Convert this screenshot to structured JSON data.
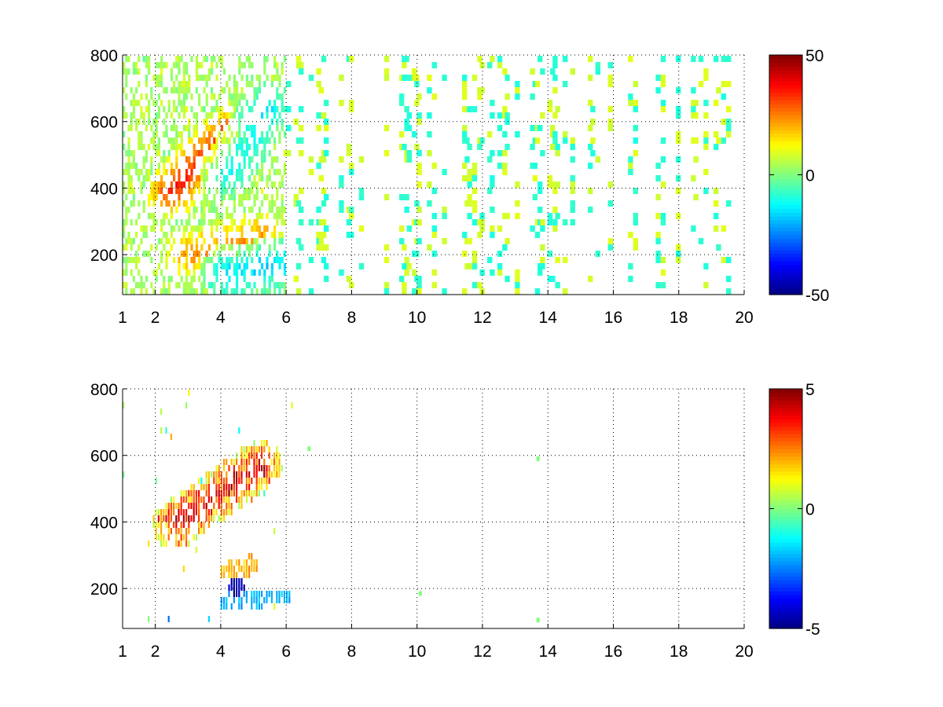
{
  "chart_data": [
    {
      "type": "heatmap",
      "title": "",
      "xlabel": "",
      "ylabel": "",
      "xlim": [
        1,
        20
      ],
      "ylim": [
        80,
        800
      ],
      "x_ticks": [
        1,
        2,
        4,
        6,
        8,
        10,
        12,
        14,
        16,
        18,
        20
      ],
      "y_ticks": [
        200,
        400,
        600,
        800
      ],
      "grid": true,
      "colormap": "jet",
      "colorbar": {
        "range": [
          -50,
          50
        ],
        "ticks": [
          -50,
          0,
          50
        ]
      },
      "features": [
        {
          "name": "dense-band",
          "x_range": [
            1,
            6
          ],
          "y_range": [
            80,
            800
          ],
          "value_range": [
            -20,
            20
          ]
        },
        {
          "name": "upper-warm-ridge",
          "from": [
            2.5,
            390
          ],
          "to": [
            4.2,
            560
          ],
          "value": 35
        },
        {
          "name": "upper-cool-ridge",
          "from": [
            4.2,
            450
          ],
          "to": [
            5.5,
            650
          ],
          "value": -15
        },
        {
          "name": "lower-warm-ridge",
          "from": [
            3.0,
            200
          ],
          "to": [
            5.2,
            260
          ],
          "value": 22
        },
        {
          "name": "lower-cool-band",
          "from": [
            4.2,
            150
          ],
          "to": [
            5.9,
            170
          ],
          "value": -18
        },
        {
          "name": "sparse-noise",
          "x_range": [
            6,
            20
          ],
          "y_range": [
            80,
            800
          ],
          "value_range": [
            -10,
            10
          ]
        }
      ]
    },
    {
      "type": "heatmap",
      "title": "",
      "xlabel": "",
      "ylabel": "",
      "xlim": [
        1,
        20
      ],
      "ylim": [
        80,
        800
      ],
      "x_ticks": [
        1,
        2,
        4,
        6,
        8,
        10,
        12,
        14,
        16,
        18,
        20
      ],
      "y_ticks": [
        200,
        400,
        600,
        800
      ],
      "grid": true,
      "colormap": "jet",
      "colorbar": {
        "range": [
          -5,
          5
        ],
        "ticks": [
          -5,
          0,
          5
        ]
      },
      "features": [
        {
          "name": "upper-ridge",
          "from": [
            2.6,
            390
          ],
          "to": [
            5.2,
            570
          ],
          "value": 4
        },
        {
          "name": "lower-ridge",
          "from": [
            4.3,
            250
          ],
          "to": [
            4.9,
            270
          ],
          "value": 2
        },
        {
          "name": "negative-core",
          "at": [
            4.5,
            205
          ],
          "value": -5
        },
        {
          "name": "lower-cool-band",
          "from": [
            4.2,
            160
          ],
          "to": [
            5.9,
            175
          ],
          "value": -2
        },
        {
          "name": "isolated-points",
          "points": [
            [
              13.7,
              590
            ],
            [
              13.7,
              105
            ],
            [
              10.1,
              185
            ],
            [
              6.7,
              620
            ]
          ],
          "value": 0
        }
      ]
    }
  ]
}
